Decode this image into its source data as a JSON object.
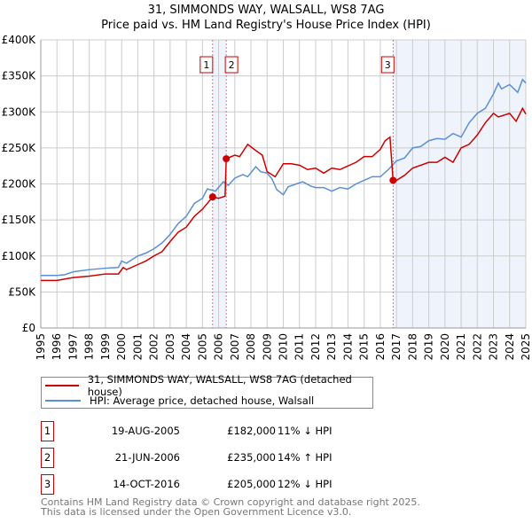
{
  "chart_data": {
    "type": "line",
    "title": "31, SIMMONDS WAY, WALSALL, WS8 7AG",
    "subtitle": "Price paid vs. HM Land Registry's House Price Index (HPI)",
    "xlim": [
      1995,
      2025
    ],
    "ylim": [
      0,
      400000
    ],
    "y_ticks": [
      {
        "v": 0,
        "label": "£0"
      },
      {
        "v": 50000,
        "label": "£50K"
      },
      {
        "v": 100000,
        "label": "£100K"
      },
      {
        "v": 150000,
        "label": "£150K"
      },
      {
        "v": 200000,
        "label": "£200K"
      },
      {
        "v": 250000,
        "label": "£250K"
      },
      {
        "v": 300000,
        "label": "£300K"
      },
      {
        "v": 350000,
        "label": "£350K"
      },
      {
        "v": 400000,
        "label": "£400K"
      }
    ],
    "x_ticks": [
      "1995",
      "1996",
      "1997",
      "1998",
      "1999",
      "2000",
      "2001",
      "2002",
      "2003",
      "2004",
      "2005",
      "2006",
      "2007",
      "2008",
      "2009",
      "2010",
      "2011",
      "2012",
      "2013",
      "2014",
      "2015",
      "2016",
      "2017",
      "2018",
      "2019",
      "2020",
      "2021",
      "2022",
      "2023",
      "2024",
      "2025"
    ],
    "grid": true,
    "series": [
      {
        "name": "31, SIMMONDS WAY, WALSALL, WS8 7AG (detached house)",
        "color": "#cc0000",
        "x": [
          1995,
          1996,
          1997,
          1998,
          1999,
          1999.8,
          2000.1,
          2000.3,
          2001,
          2001.5,
          2002,
          2002.5,
          2003,
          2003.5,
          2004,
          2004.5,
          2005,
          2005.3,
          2005.63,
          2006.0,
          2006.4,
          2006.47,
          2007.0,
          2007.3,
          2007.8,
          2008.2,
          2008.7,
          2009.0,
          2009.5,
          2010,
          2010.5,
          2011,
          2011.5,
          2012,
          2012.5,
          2013,
          2013.5,
          2014,
          2014.5,
          2015,
          2015.5,
          2016,
          2016.3,
          2016.6,
          2016.79,
          2017,
          2017.5,
          2018,
          2019,
          2019.5,
          2020,
          2020.5,
          2021,
          2021.5,
          2022,
          2022.5,
          2023,
          2023.3,
          2024,
          2024.4,
          2024.8,
          2025
        ],
        "values": [
          66000,
          66000,
          70000,
          72000,
          75000,
          75000,
          84000,
          81000,
          88000,
          93000,
          100000,
          106000,
          120000,
          133000,
          140000,
          155000,
          165000,
          173000,
          182000,
          180000,
          183000,
          235000,
          240000,
          238000,
          255000,
          248000,
          240000,
          217000,
          210000,
          228000,
          228000,
          226000,
          220000,
          222000,
          215000,
          222000,
          220000,
          225000,
          230000,
          238000,
          238000,
          248000,
          260000,
          265000,
          205000,
          205000,
          212000,
          222000,
          230000,
          230000,
          237000,
          230000,
          250000,
          255000,
          268000,
          285000,
          298000,
          293000,
          298000,
          287000,
          305000,
          297000
        ]
      },
      {
        "name": "HPI: Average price, detached house, Walsall",
        "color": "#5b8fd6",
        "x": [
          1995,
          1996,
          1996.5,
          1997,
          1998,
          1999,
          1999.8,
          2000,
          2000.3,
          2001,
          2001.5,
          2002,
          2002.5,
          2003,
          2003.5,
          2004,
          2004.5,
          2005,
          2005.3,
          2005.8,
          2006.3,
          2006.6,
          2007,
          2007.5,
          2007.8,
          2008.3,
          2008.6,
          2009,
          2009.3,
          2009.6,
          2010,
          2010.3,
          2010.8,
          2011.2,
          2011.7,
          2012,
          2012.5,
          2013,
          2013.5,
          2014,
          2014.5,
          2015,
          2015.5,
          2016,
          2016.5,
          2017,
          2017.5,
          2018,
          2018.5,
          2019,
          2019.5,
          2020,
          2020.5,
          2021,
          2021.5,
          2022,
          2022.5,
          2023,
          2023.3,
          2023.5,
          2024,
          2024.5,
          2024.8,
          2025
        ],
        "values": [
          73000,
          73000,
          74000,
          78000,
          81000,
          83000,
          84000,
          93000,
          90000,
          100000,
          104000,
          110000,
          118000,
          130000,
          145000,
          155000,
          173000,
          180000,
          193000,
          190000,
          203000,
          198000,
          208000,
          213000,
          210000,
          224000,
          217000,
          215000,
          207000,
          192000,
          185000,
          196000,
          200000,
          203000,
          197000,
          195000,
          195000,
          190000,
          195000,
          193000,
          200000,
          205000,
          210000,
          210000,
          220000,
          232000,
          236000,
          250000,
          252000,
          260000,
          263000,
          262000,
          270000,
          265000,
          285000,
          298000,
          305000,
          325000,
          340000,
          332000,
          338000,
          327000,
          345000,
          340000
        ]
      }
    ],
    "sales": [
      {
        "label": "1",
        "x": 2005.63,
        "value": 182000,
        "date": "19-AUG-2005",
        "price": "£182,000",
        "hpi": "11% ↓ HPI"
      },
      {
        "label": "2",
        "x": 2006.47,
        "value": 235000,
        "date": "21-JUN-2006",
        "price": "£235,000",
        "hpi": "14% ↑ HPI"
      },
      {
        "label": "3",
        "x": 2016.79,
        "value": 205000,
        "date": "14-OCT-2016",
        "price": "£205,000",
        "hpi": "12% ↓ HPI"
      }
    ]
  },
  "footer": {
    "line1": "Contains HM Land Registry data © Crown copyright and database right 2025.",
    "line2": "This data is licensed under the Open Government Licence v3.0."
  }
}
